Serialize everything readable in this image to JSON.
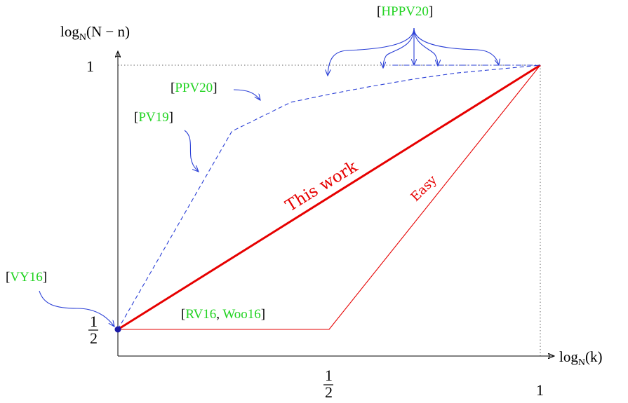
{
  "chart_data": {
    "type": "line",
    "title": "",
    "xlabel": "log_N(k)",
    "ylabel": "log_N(N − n)",
    "xlim": [
      0,
      1
    ],
    "ylim": [
      0.4,
      1
    ],
    "x_ticks": [
      {
        "value": 0.5,
        "label": "1/2"
      },
      {
        "value": 1,
        "label": "1"
      }
    ],
    "y_ticks": [
      {
        "value": 0.5,
        "label": "1/2"
      },
      {
        "value": 1,
        "label": "1"
      }
    ],
    "series": [
      {
        "name": "This work",
        "style": "solid-thick",
        "color": "#e60000",
        "points": [
          [
            0,
            0.5
          ],
          [
            1,
            1
          ]
        ]
      },
      {
        "name": "Easy",
        "style": "solid-thin",
        "color": "#e60000",
        "points": [
          [
            0,
            0.5
          ],
          [
            0.5,
            0.5
          ],
          [
            1,
            1
          ]
        ]
      },
      {
        "name": "",
        "style": "dashed",
        "color": "#2a3fd6",
        "points": [
          [
            0,
            0.5
          ],
          [
            0.27,
            0.875
          ],
          [
            0.41,
            0.93
          ],
          [
            0.5,
            0.945
          ],
          [
            0.6,
            0.96
          ],
          [
            0.71,
            0.975
          ],
          [
            0.8,
            0.985
          ],
          [
            1,
            1
          ]
        ]
      }
    ],
    "cites": {
      "vy16": "VY16",
      "pv19": "PV19",
      "ppv20": "PPV20",
      "hppv20": "HPPV20",
      "rv16": "RV16",
      "woo16": "Woo16"
    },
    "annotations": {
      "this_work": "This work",
      "easy": "Easy"
    }
  }
}
